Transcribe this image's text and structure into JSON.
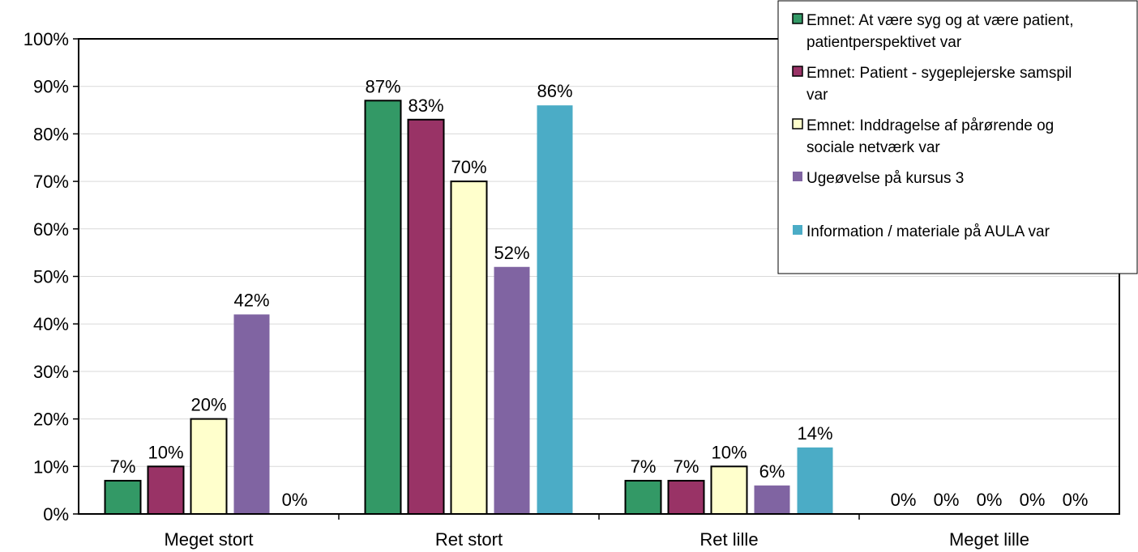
{
  "chart_data": {
    "type": "bar",
    "title": "",
    "xlabel": "",
    "ylabel": "",
    "ylim": [
      0,
      100
    ],
    "yticks": [
      "0%",
      "10%",
      "20%",
      "30%",
      "40%",
      "50%",
      "60%",
      "70%",
      "80%",
      "90%",
      "100%"
    ],
    "grid": true,
    "legend_position": "top-right",
    "categories": [
      "Meget stort",
      "Ret stort",
      "Ret lille",
      "Meget lille"
    ],
    "series": [
      {
        "name": "Emnet: At være syg og at være patient, patientperspektivet var",
        "legend_lines": [
          "Emnet: At være syg og at være patient,",
          "patientperspektivet var"
        ],
        "color": "#339966",
        "outline": true,
        "values": [
          7,
          87,
          7,
          0
        ],
        "labels": [
          "7%",
          "87%",
          "7%",
          "0%"
        ]
      },
      {
        "name": "Emnet: Patient - sygeplejerske samspil var",
        "legend_lines": [
          "Emnet: Patient - sygeplejerske samspil",
          "var"
        ],
        "color": "#993366",
        "outline": true,
        "values": [
          10,
          83,
          7,
          0
        ],
        "labels": [
          "10%",
          "83%",
          "7%",
          "0%"
        ]
      },
      {
        "name": "Emnet: Inddragelse af pårørende og sociale netværk var",
        "legend_lines": [
          "Emnet: Inddragelse af pårørende og",
          "sociale netværk var"
        ],
        "color": "#ffffcc",
        "outline": true,
        "values": [
          20,
          70,
          10,
          0
        ],
        "labels": [
          "20%",
          "70%",
          "10%",
          "0%"
        ]
      },
      {
        "name": "Ugeøvelse på kursus 3",
        "legend_lines": [
          "Ugeøvelse på kursus 3"
        ],
        "color": "#8064a2",
        "outline": false,
        "values": [
          42,
          52,
          6,
          0
        ],
        "labels": [
          "42%",
          "52%",
          "6%",
          "0%"
        ]
      },
      {
        "name": "Information / materiale på AULA var",
        "legend_lines": [
          "Information / materiale på AULA var"
        ],
        "color": "#4bacc6",
        "outline": false,
        "values": [
          0,
          86,
          14,
          0
        ],
        "labels": [
          "0%",
          "86%",
          "14%",
          "0%"
        ]
      }
    ]
  }
}
